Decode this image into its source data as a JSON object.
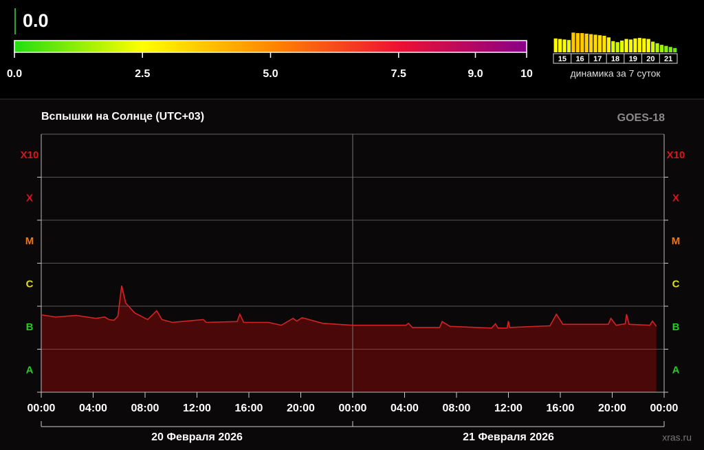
{
  "current": {
    "value": 0,
    "label": "0.0"
  },
  "scale": {
    "range": [
      0,
      10
    ],
    "ticks": [
      {
        "value": 0,
        "label": "0.0"
      },
      2.5,
      {
        "value": 5,
        "label": "5.0"
      },
      7.5,
      {
        "value": 9,
        "label": "9.0"
      },
      10
    ],
    "colors": [
      "#22dd11",
      "#ffff00",
      "#ff8800",
      "#ee1133",
      "#880088"
    ]
  },
  "mini": {
    "caption": "динамика за 7 суток",
    "days": [
      "15",
      "16",
      "17",
      "18",
      "19",
      "20",
      "21"
    ],
    "ylim": [
      0,
      4
    ],
    "values": [
      2.6,
      2.5,
      2.4,
      2.3,
      3.7,
      3.6,
      3.6,
      3.5,
      3.4,
      3.3,
      3.2,
      3.1,
      2.8,
      2.1,
      1.9,
      2.2,
      2.5,
      2.4,
      2.6,
      2.7,
      2.6,
      2.5,
      2.0,
      1.7,
      1.4,
      1.2,
      1.0,
      0.8
    ]
  },
  "chart_data": {
    "type": "area",
    "title": "Вспышки на Солнце (UTC+03)",
    "source": "GOES-18",
    "footer": "xras.ru",
    "days": [
      "20 Февраля 2026",
      "21 Февраля 2026"
    ],
    "x": [
      0,
      1.1,
      2.7,
      4.2,
      4.9,
      5.2,
      5.6,
      5.9,
      6.2,
      6.5,
      7.2,
      8.2,
      8.9,
      9.3,
      10.1,
      12.5,
      12.7,
      15.1,
      15.3,
      15.6,
      17.5,
      18.5,
      19.4,
      19.7,
      20.1,
      21.7,
      24.0,
      28.1,
      28.3,
      28.6,
      30.7,
      30.9,
      31.5,
      34.7,
      35.0,
      35.2,
      35.9,
      36.0,
      36.1,
      39.2,
      39.7,
      40.2,
      43.7,
      43.9,
      44.3,
      45.0,
      45.1,
      45.3,
      46.9,
      47.1,
      47.4
    ],
    "values": [
      6.3e-07,
      5.6e-07,
      6.1e-07,
      5.2e-07,
      5.6e-07,
      4.9e-07,
      4.7e-07,
      5.8e-07,
      3e-06,
      1.2e-06,
      7e-07,
      4.9e-07,
      7.8e-07,
      4.9e-07,
      4.2e-07,
      4.9e-07,
      4.2e-07,
      4.4e-07,
      6.5e-07,
      4.2e-07,
      4.2e-07,
      3.6e-07,
      5.2e-07,
      4.5e-07,
      5.4e-07,
      4e-07,
      3.6e-07,
      3.6e-07,
      4e-07,
      3.2e-07,
      3.2e-07,
      4.4e-07,
      3.4e-07,
      3.1e-07,
      3.9e-07,
      3.1e-07,
      3.1e-07,
      4.5e-07,
      3.2e-07,
      3.5e-07,
      6.5e-07,
      3.8e-07,
      3.8e-07,
      5.2e-07,
      3.6e-07,
      3.9e-07,
      6.5e-07,
      3.8e-07,
      3.6e-07,
      4.5e-07,
      3.4e-07
    ],
    "color": "#d42323",
    "fill": "#4a0808",
    "xlim": [
      0,
      48
    ],
    "xticks": [
      {
        "value": 0,
        "label": "00:00"
      },
      {
        "value": 4,
        "label": "04:00"
      },
      {
        "value": 8,
        "label": "08:00"
      },
      {
        "value": 12,
        "label": "12:00"
      },
      {
        "value": 16,
        "label": "16:00"
      },
      {
        "value": 20,
        "label": "20:00"
      },
      {
        "value": 24,
        "label": "00:00"
      },
      {
        "value": 28,
        "label": "04:00"
      },
      {
        "value": 32,
        "label": "08:00"
      },
      {
        "value": 36,
        "label": "12:00"
      },
      {
        "value": 40,
        "label": "16:00"
      },
      {
        "value": 44,
        "label": "20:00"
      },
      {
        "value": 48,
        "label": "00:00"
      }
    ],
    "log_y": true,
    "ylim": [
      1e-08,
      0.01
    ],
    "yticks": [
      {
        "value": 1e-08,
        "label": "A"
      },
      {
        "value": 1e-07,
        "label": "B"
      },
      {
        "value": 1e-06,
        "label": "C"
      },
      {
        "value": 1e-05,
        "label": "M"
      },
      {
        "value": 0.0001,
        "label": "X"
      },
      {
        "value": 0.001,
        "label": "X10"
      }
    ],
    "ytick_colors": [
      "#22cc22",
      "#22cc22",
      "#dddd22",
      "#ee7711",
      "#dd1515",
      "#dd1515"
    ],
    "grid": true
  }
}
